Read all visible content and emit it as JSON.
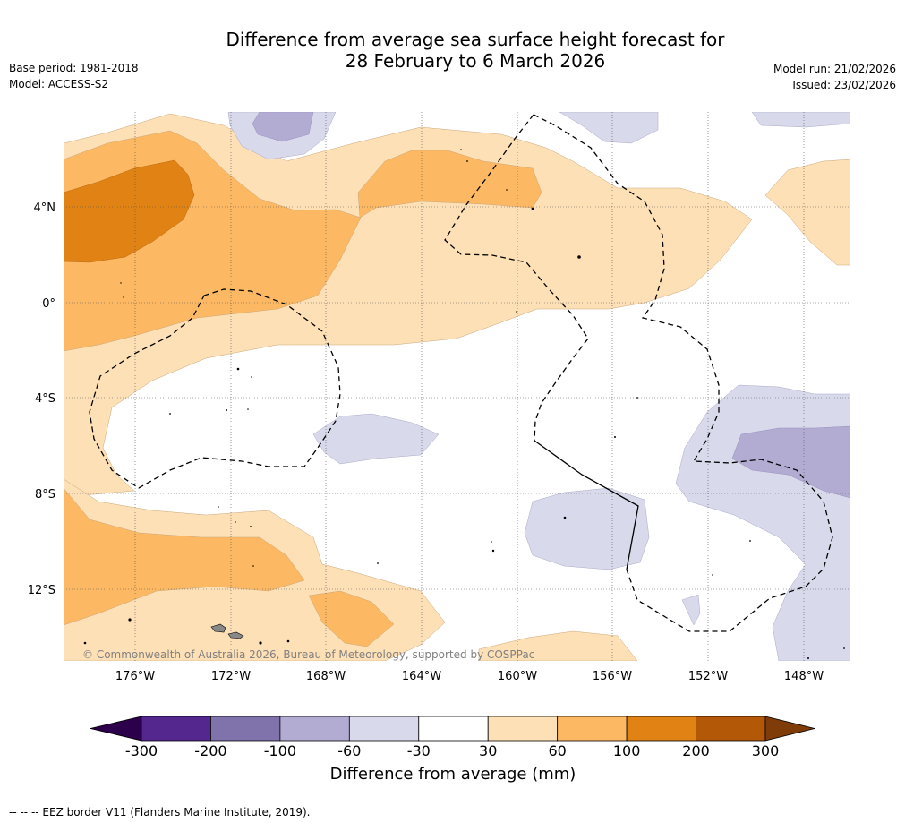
{
  "title_line1": "Difference from average sea surface height forecast for",
  "title_line2": "28 February to 6 March 2026",
  "base_period": "Base period: 1981-2018",
  "model": "Model: ACCESS-S2",
  "model_run": "Model run: 21/02/2026",
  "issued": "Issued: 23/02/2026",
  "copyright": "© Commonwealth of Australia 2026, Bureau of Meteorology, supported by COSPPac",
  "footnote": "--  --  -- EEZ border V11 (Flanders Marine Institute, 2019).",
  "map": {
    "lon_ticks": [
      "176°W",
      "172°W",
      "168°W",
      "164°W",
      "160°W",
      "156°W",
      "152°W",
      "148°W"
    ],
    "lat_ticks": [
      "4°N",
      "0°",
      "4°S",
      "8°S",
      "12°S"
    ]
  },
  "colorbar": {
    "label": "Difference from average (mm)",
    "ticks": [
      "-300",
      "-200",
      "-100",
      "-60",
      "-30",
      "30",
      "60",
      "100",
      "200",
      "300"
    ],
    "colors": [
      "#54278f",
      "#8073ac",
      "#b2abd2",
      "#d8daeb",
      "#ffffff",
      "#fee0b6",
      "#fdb863",
      "#e08214",
      "#b35806"
    ],
    "extend_low_color": "#2d004b",
    "extend_high_color": "#7f3b08"
  }
}
